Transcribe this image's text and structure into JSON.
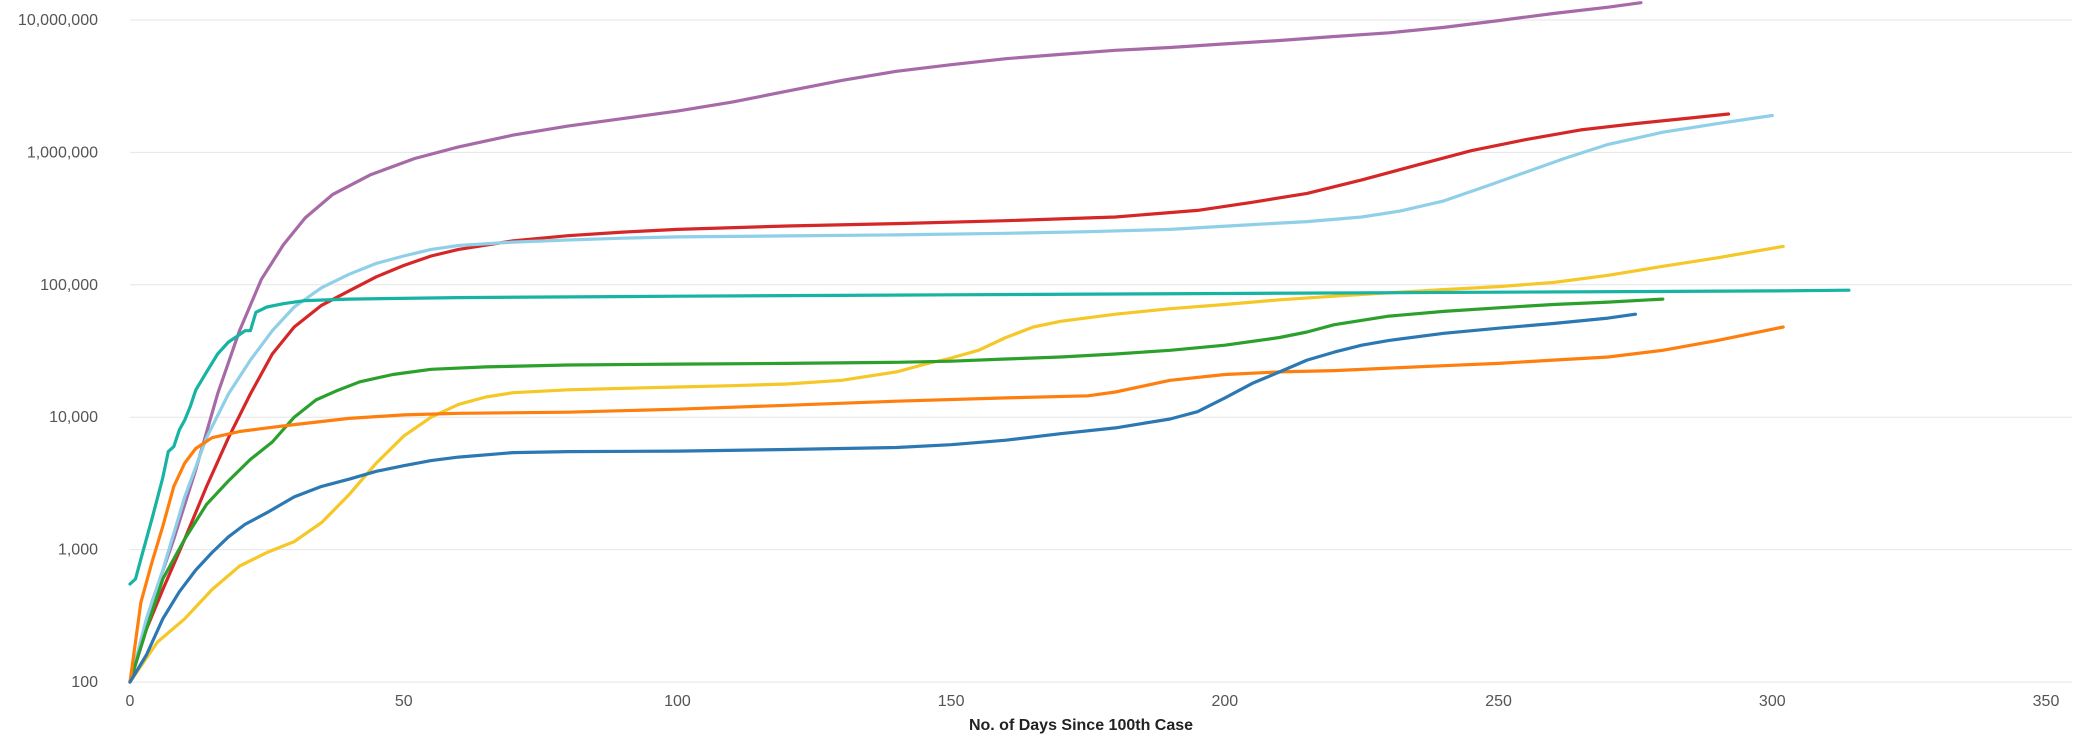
{
  "chart_data": {
    "type": "line",
    "title": "",
    "xlabel": "No. of Days Since 100th Case",
    "ylabel": "",
    "y_scale": "log",
    "xlim": [
      0,
      350
    ],
    "ylim": [
      100,
      10000000
    ],
    "x_ticks": [
      0,
      50,
      100,
      150,
      200,
      250,
      300,
      350
    ],
    "x_tick_labels": [
      "0",
      "50",
      "100",
      "150",
      "200",
      "250",
      "300",
      "350"
    ],
    "y_ticks": [
      100,
      1000,
      10000,
      100000,
      1000000,
      10000000
    ],
    "y_tick_labels": [
      "100",
      "1,000",
      "10,000",
      "100,000",
      "1,000,000",
      "10,000,000"
    ],
    "grid": "horizontal",
    "legend": "none",
    "series": [
      {
        "color": "#a66aa6",
        "points": [
          [
            0,
            100
          ],
          [
            4,
            400
          ],
          [
            8,
            1200
          ],
          [
            12,
            4000
          ],
          [
            16,
            15000
          ],
          [
            20,
            45000
          ],
          [
            24,
            110000
          ],
          [
            28,
            200000
          ],
          [
            32,
            320000
          ],
          [
            37,
            480000
          ],
          [
            44,
            680000
          ],
          [
            52,
            900000
          ],
          [
            60,
            1100000
          ],
          [
            70,
            1350000
          ],
          [
            80,
            1580000
          ],
          [
            90,
            1800000
          ],
          [
            100,
            2050000
          ],
          [
            110,
            2400000
          ],
          [
            120,
            2900000
          ],
          [
            130,
            3500000
          ],
          [
            140,
            4100000
          ],
          [
            150,
            4600000
          ],
          [
            160,
            5100000
          ],
          [
            170,
            5500000
          ],
          [
            180,
            5900000
          ],
          [
            190,
            6200000
          ],
          [
            200,
            6600000
          ],
          [
            210,
            7000000
          ],
          [
            220,
            7500000
          ],
          [
            230,
            8000000
          ],
          [
            240,
            8800000
          ],
          [
            250,
            9900000
          ],
          [
            260,
            11200000
          ],
          [
            270,
            12500000
          ],
          [
            276,
            13500000
          ]
        ]
      },
      {
        "color": "#d62728",
        "points": [
          [
            0,
            100
          ],
          [
            3,
            250
          ],
          [
            6,
            500
          ],
          [
            10,
            1200
          ],
          [
            14,
            3000
          ],
          [
            18,
            7000
          ],
          [
            22,
            15000
          ],
          [
            26,
            30000
          ],
          [
            30,
            48000
          ],
          [
            35,
            70000
          ],
          [
            40,
            90000
          ],
          [
            45,
            115000
          ],
          [
            50,
            140000
          ],
          [
            55,
            165000
          ],
          [
            60,
            185000
          ],
          [
            70,
            215000
          ],
          [
            80,
            235000
          ],
          [
            90,
            250000
          ],
          [
            100,
            262000
          ],
          [
            120,
            278000
          ],
          [
            140,
            290000
          ],
          [
            160,
            305000
          ],
          [
            180,
            325000
          ],
          [
            195,
            365000
          ],
          [
            205,
            420000
          ],
          [
            215,
            490000
          ],
          [
            225,
            620000
          ],
          [
            235,
            800000
          ],
          [
            245,
            1030000
          ],
          [
            255,
            1250000
          ],
          [
            265,
            1480000
          ],
          [
            275,
            1650000
          ],
          [
            285,
            1820000
          ],
          [
            292,
            1950000
          ]
        ]
      },
      {
        "color": "#8fd0e8",
        "points": [
          [
            0,
            100
          ],
          [
            3,
            300
          ],
          [
            6,
            700
          ],
          [
            10,
            2500
          ],
          [
            14,
            7000
          ],
          [
            18,
            15000
          ],
          [
            22,
            27000
          ],
          [
            26,
            45000
          ],
          [
            30,
            68000
          ],
          [
            35,
            95000
          ],
          [
            40,
            120000
          ],
          [
            45,
            145000
          ],
          [
            50,
            165000
          ],
          [
            55,
            185000
          ],
          [
            60,
            198000
          ],
          [
            70,
            210000
          ],
          [
            80,
            218000
          ],
          [
            90,
            225000
          ],
          [
            100,
            230000
          ],
          [
            120,
            234000
          ],
          [
            140,
            238000
          ],
          [
            160,
            245000
          ],
          [
            175,
            252000
          ],
          [
            190,
            262000
          ],
          [
            205,
            285000
          ],
          [
            215,
            300000
          ],
          [
            225,
            325000
          ],
          [
            232,
            360000
          ],
          [
            240,
            430000
          ],
          [
            248,
            560000
          ],
          [
            255,
            710000
          ],
          [
            262,
            900000
          ],
          [
            270,
            1150000
          ],
          [
            280,
            1420000
          ],
          [
            290,
            1650000
          ],
          [
            300,
            1900000
          ]
        ]
      },
      {
        "color": "#f5c727",
        "points": [
          [
            0,
            100
          ],
          [
            5,
            200
          ],
          [
            10,
            300
          ],
          [
            15,
            500
          ],
          [
            20,
            750
          ],
          [
            25,
            950
          ],
          [
            30,
            1150
          ],
          [
            35,
            1600
          ],
          [
            40,
            2600
          ],
          [
            45,
            4500
          ],
          [
            50,
            7200
          ],
          [
            55,
            10000
          ],
          [
            60,
            12500
          ],
          [
            65,
            14200
          ],
          [
            70,
            15300
          ],
          [
            80,
            16100
          ],
          [
            90,
            16500
          ],
          [
            100,
            16900
          ],
          [
            110,
            17300
          ],
          [
            120,
            17800
          ],
          [
            130,
            19000
          ],
          [
            140,
            22000
          ],
          [
            145,
            25000
          ],
          [
            150,
            28000
          ],
          [
            155,
            32000
          ],
          [
            160,
            40000
          ],
          [
            165,
            48000
          ],
          [
            170,
            53000
          ],
          [
            180,
            60000
          ],
          [
            190,
            66000
          ],
          [
            200,
            71000
          ],
          [
            210,
            77000
          ],
          [
            220,
            82000
          ],
          [
            230,
            87000
          ],
          [
            240,
            92000
          ],
          [
            250,
            97000
          ],
          [
            260,
            104000
          ],
          [
            270,
            118000
          ],
          [
            280,
            138000
          ],
          [
            290,
            160000
          ],
          [
            302,
            195000
          ]
        ]
      },
      {
        "color": "#17b3a3",
        "points": [
          [
            0,
            550
          ],
          [
            1,
            600
          ],
          [
            2,
            850
          ],
          [
            4,
            1700
          ],
          [
            6,
            3500
          ],
          [
            7,
            5500
          ],
          [
            8,
            6000
          ],
          [
            9,
            8000
          ],
          [
            10,
            9500
          ],
          [
            11,
            12000
          ],
          [
            12,
            16000
          ],
          [
            14,
            22000
          ],
          [
            16,
            30000
          ],
          [
            18,
            37000
          ],
          [
            20,
            42000
          ],
          [
            21,
            45000
          ],
          [
            22,
            45000
          ],
          [
            23,
            62000
          ],
          [
            25,
            68000
          ],
          [
            28,
            72000
          ],
          [
            32,
            76000
          ],
          [
            40,
            78000
          ],
          [
            60,
            80000
          ],
          [
            100,
            82000
          ],
          [
            150,
            84000
          ],
          [
            200,
            86000
          ],
          [
            250,
            88000
          ],
          [
            300,
            90000
          ],
          [
            314,
            91000
          ]
        ]
      },
      {
        "color": "#2ca02c",
        "points": [
          [
            0,
            100
          ],
          [
            3,
            250
          ],
          [
            6,
            600
          ],
          [
            10,
            1200
          ],
          [
            14,
            2200
          ],
          [
            18,
            3300
          ],
          [
            22,
            4800
          ],
          [
            26,
            6500
          ],
          [
            30,
            10000
          ],
          [
            34,
            13500
          ],
          [
            38,
            16000
          ],
          [
            42,
            18500
          ],
          [
            48,
            21000
          ],
          [
            55,
            23000
          ],
          [
            65,
            24000
          ],
          [
            80,
            24800
          ],
          [
            100,
            25200
          ],
          [
            120,
            25500
          ],
          [
            140,
            26000
          ],
          [
            150,
            26500
          ],
          [
            160,
            27500
          ],
          [
            170,
            28500
          ],
          [
            180,
            30000
          ],
          [
            190,
            32000
          ],
          [
            200,
            35000
          ],
          [
            210,
            40000
          ],
          [
            215,
            44000
          ],
          [
            220,
            50000
          ],
          [
            230,
            58000
          ],
          [
            240,
            63000
          ],
          [
            250,
            67000
          ],
          [
            260,
            71000
          ],
          [
            270,
            74000
          ],
          [
            280,
            78000
          ]
        ]
      },
      {
        "color": "#ff7f0e",
        "points": [
          [
            0,
            100
          ],
          [
            2,
            400
          ],
          [
            4,
            800
          ],
          [
            6,
            1500
          ],
          [
            8,
            3000
          ],
          [
            10,
            4500
          ],
          [
            12,
            5800
          ],
          [
            15,
            7000
          ],
          [
            20,
            7800
          ],
          [
            25,
            8300
          ],
          [
            30,
            8800
          ],
          [
            40,
            9800
          ],
          [
            50,
            10400
          ],
          [
            60,
            10700
          ],
          [
            80,
            10900
          ],
          [
            100,
            11500
          ],
          [
            120,
            12300
          ],
          [
            140,
            13200
          ],
          [
            160,
            14000
          ],
          [
            175,
            14500
          ],
          [
            180,
            15500
          ],
          [
            190,
            19000
          ],
          [
            200,
            21000
          ],
          [
            210,
            22000
          ],
          [
            220,
            22500
          ],
          [
            230,
            23500
          ],
          [
            240,
            24500
          ],
          [
            250,
            25500
          ],
          [
            260,
            27000
          ],
          [
            270,
            28500
          ],
          [
            280,
            32000
          ],
          [
            290,
            38000
          ],
          [
            302,
            48000
          ]
        ]
      },
      {
        "color": "#2c78b3",
        "points": [
          [
            0,
            100
          ],
          [
            3,
            160
          ],
          [
            6,
            300
          ],
          [
            9,
            480
          ],
          [
            12,
            700
          ],
          [
            15,
            950
          ],
          [
            18,
            1250
          ],
          [
            21,
            1550
          ],
          [
            25,
            1900
          ],
          [
            30,
            2500
          ],
          [
            35,
            3000
          ],
          [
            40,
            3400
          ],
          [
            45,
            3900
          ],
          [
            50,
            4300
          ],
          [
            55,
            4700
          ],
          [
            60,
            5000
          ],
          [
            70,
            5400
          ],
          [
            80,
            5500
          ],
          [
            100,
            5550
          ],
          [
            120,
            5700
          ],
          [
            140,
            5900
          ],
          [
            150,
            6200
          ],
          [
            160,
            6700
          ],
          [
            170,
            7500
          ],
          [
            180,
            8300
          ],
          [
            190,
            9700
          ],
          [
            195,
            11000
          ],
          [
            200,
            14000
          ],
          [
            205,
            18000
          ],
          [
            210,
            22000
          ],
          [
            215,
            27000
          ],
          [
            220,
            31000
          ],
          [
            225,
            35000
          ],
          [
            230,
            38000
          ],
          [
            240,
            43000
          ],
          [
            250,
            47000
          ],
          [
            260,
            51000
          ],
          [
            270,
            56000
          ],
          [
            275,
            60000
          ]
        ]
      }
    ]
  }
}
